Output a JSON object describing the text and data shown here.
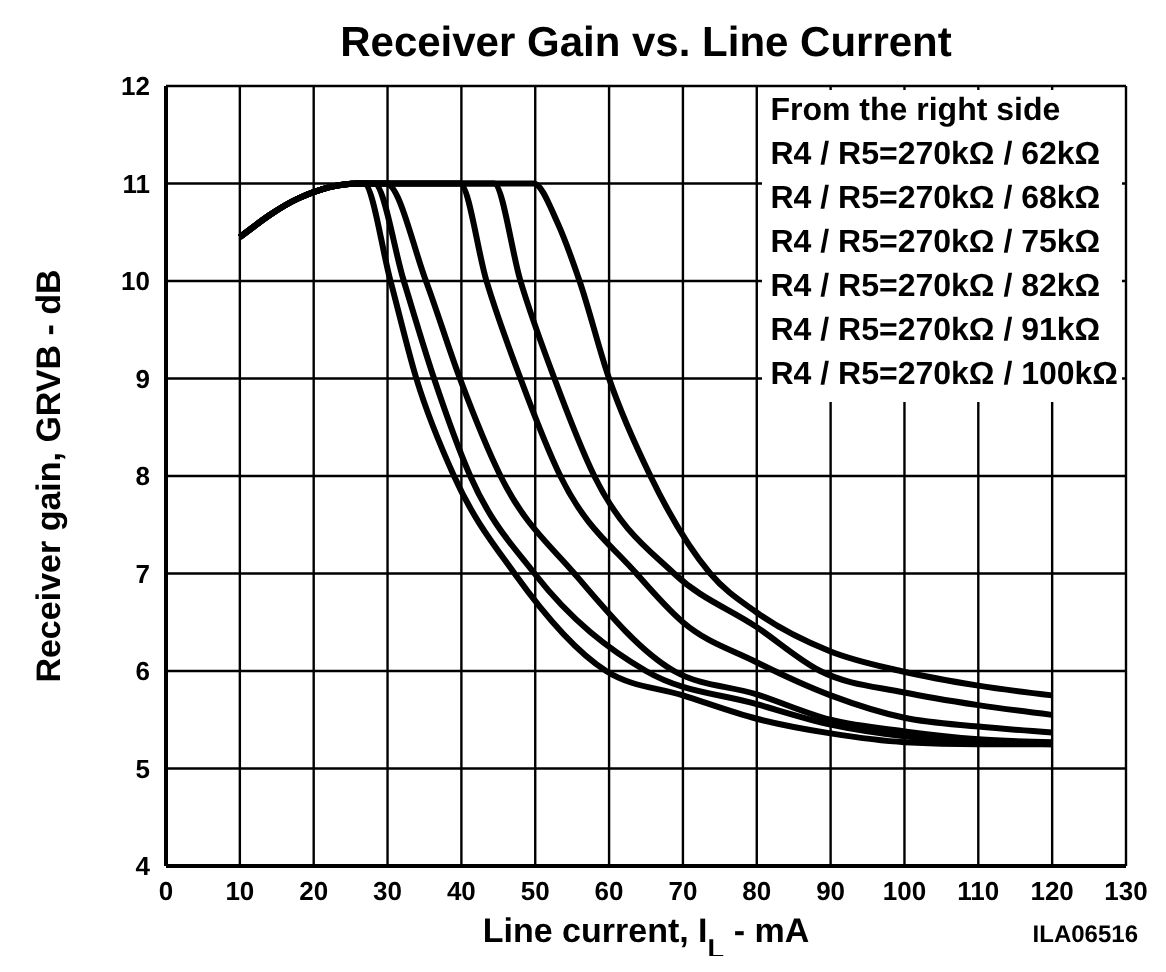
{
  "chart_data": {
    "type": "line",
    "title": "Receiver Gain vs. Line Current",
    "xlabel": "Line current, I$_{L}$ - mA",
    "ylabel": "Receiver gain, GRVB - dB",
    "annotations": [
      "From the right side",
      "R4 / R5=270kΩ / 62kΩ",
      "R4 / R5=270kΩ / 68kΩ",
      "R4 / R5=270kΩ / 75kΩ",
      "R4 / R5=270kΩ / 82kΩ",
      "R4 / R5=270kΩ / 91kΩ",
      "R4 / R5=270kΩ / 100kΩ",
      "ILA06516"
    ],
    "xlim": [
      0,
      130
    ],
    "xticks": [
      0,
      10,
      20,
      30,
      40,
      50,
      60,
      70,
      80,
      90,
      100,
      110,
      120,
      130
    ],
    "ylim": [
      4,
      12
    ],
    "yticks": [
      4,
      5,
      6,
      7,
      8,
      9,
      10,
      11,
      12
    ],
    "grid": true,
    "marker": "none",
    "line_style": "solid",
    "series": [
      {
        "color": "#000000",
        "x": [
          10,
          18,
          26,
          49.8,
          53,
          56,
          60,
          65.6,
          73.7,
          80,
          90,
          99.5,
          110,
          120
        ],
        "values": [
          10.45,
          10.85,
          11,
          11,
          10.6,
          10,
          9,
          8,
          7,
          6.6,
          6.2,
          6,
          5.85,
          5.75
        ]
      },
      {
        "color": "#000000",
        "x": [
          10,
          18,
          26,
          44.4,
          48,
          52.6,
          58,
          68.8,
          80,
          88.6,
          100,
          110,
          120
        ],
        "values": [
          10.45,
          10.85,
          11,
          11,
          10,
          9,
          8,
          7,
          6.45,
          6,
          5.78,
          5.65,
          5.55
        ]
      },
      {
        "color": "#000000",
        "x": [
          10,
          18,
          26,
          39.8,
          43.4,
          48,
          53.4,
          63.7,
          70,
          79.7,
          90,
          100,
          110,
          120
        ],
        "values": [
          10.45,
          10.85,
          11,
          11,
          10,
          9,
          8,
          7,
          6.5,
          6.1,
          5.75,
          5.52,
          5.43,
          5.37
        ]
      },
      {
        "color": "#000000",
        "x": [
          10,
          18,
          26,
          29.8,
          35.2,
          39.8,
          45.3,
          55.3,
          68.8,
          80,
          90,
          100,
          110,
          120
        ],
        "values": [
          10.45,
          10.85,
          11,
          11,
          10,
          9,
          8,
          7,
          6,
          5.76,
          5.5,
          5.38,
          5.3,
          5.27
        ]
      },
      {
        "color": "#000000",
        "x": [
          10,
          18,
          26,
          28.2,
          32.2,
          36.3,
          41.2,
          49.9,
          65,
          80,
          90,
          100,
          110,
          120
        ],
        "values": [
          10.45,
          10.85,
          11,
          11,
          10,
          9,
          8,
          7,
          6,
          5.66,
          5.45,
          5.33,
          5.27,
          5.25
        ]
      },
      {
        "color": "#000000",
        "x": [
          10,
          18,
          26,
          26.8,
          30.4,
          33.9,
          39,
          47.2,
          59.6,
          70,
          80,
          90,
          100,
          110,
          120
        ],
        "values": [
          10.45,
          10.85,
          11,
          11,
          10,
          9,
          8,
          7,
          6,
          5.75,
          5.51,
          5.36,
          5.27,
          5.25,
          5.25
        ]
      }
    ]
  }
}
